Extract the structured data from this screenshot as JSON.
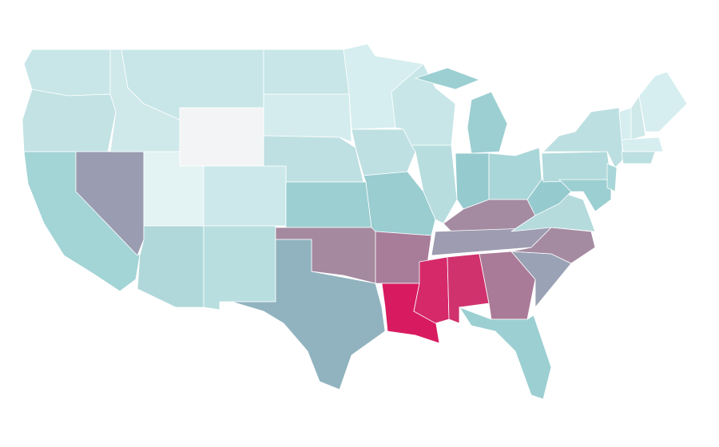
{
  "regions": [
    {
      "color": "#c8e6e8"
    },
    {
      "color": "#c2e2e4"
    },
    {
      "color": "#a3d4d6"
    },
    {
      "color": "#9a9cb1"
    },
    {
      "color": "#cfe8ea"
    },
    {
      "color": "#c8e6e8"
    },
    {
      "color": "#f3f4f5"
    },
    {
      "color": "#e3f3f4"
    },
    {
      "color": "#b0d8da"
    },
    {
      "color": "#cce8ea"
    },
    {
      "color": "#b8dedf"
    },
    {
      "color": "#c8e6e8"
    },
    {
      "color": "#d4ecee"
    },
    {
      "color": "#bfe0e2"
    },
    {
      "color": "#9ccfd2"
    },
    {
      "color": "#a4899f"
    },
    {
      "color": "#90b3bf"
    },
    {
      "color": "#d6eef0"
    },
    {
      "color": "#bfe0e2"
    },
    {
      "color": "#99cdd0"
    },
    {
      "color": "#a87d9a"
    },
    {
      "color": "#d81b60"
    },
    {
      "color": "#c8e6e8"
    },
    {
      "color": "#b7dddf"
    },
    {
      "color": "#9ccfd2"
    },
    {
      "color": "#9ccfd2"
    },
    {
      "color": "#95cbcf"
    },
    {
      "color": "#a9d6d8"
    },
    {
      "color": "#a48ba2"
    },
    {
      "color": "#9e9cb1"
    },
    {
      "color": "#d5296a"
    },
    {
      "color": "#d0326e"
    },
    {
      "color": "#aa7b98"
    },
    {
      "color": "#9ccfd2"
    },
    {
      "color": "#9aa3b5"
    },
    {
      "color": "#a58ba2"
    },
    {
      "color": "#b5dbdd"
    },
    {
      "color": "#95cbcf"
    },
    {
      "color": "#b2dadc"
    },
    {
      "color": "#bcdfe1"
    },
    {
      "color": "#9ccfd2"
    },
    {
      "color": "#a9d6d8"
    },
    {
      "color": "#d6eef0"
    },
    {
      "color": "#cfe8ea"
    },
    {
      "color": "#d6eef0"
    },
    {
      "color": "#d6eef0"
    },
    {
      "color": "#bcdfe1"
    }
  ]
}
